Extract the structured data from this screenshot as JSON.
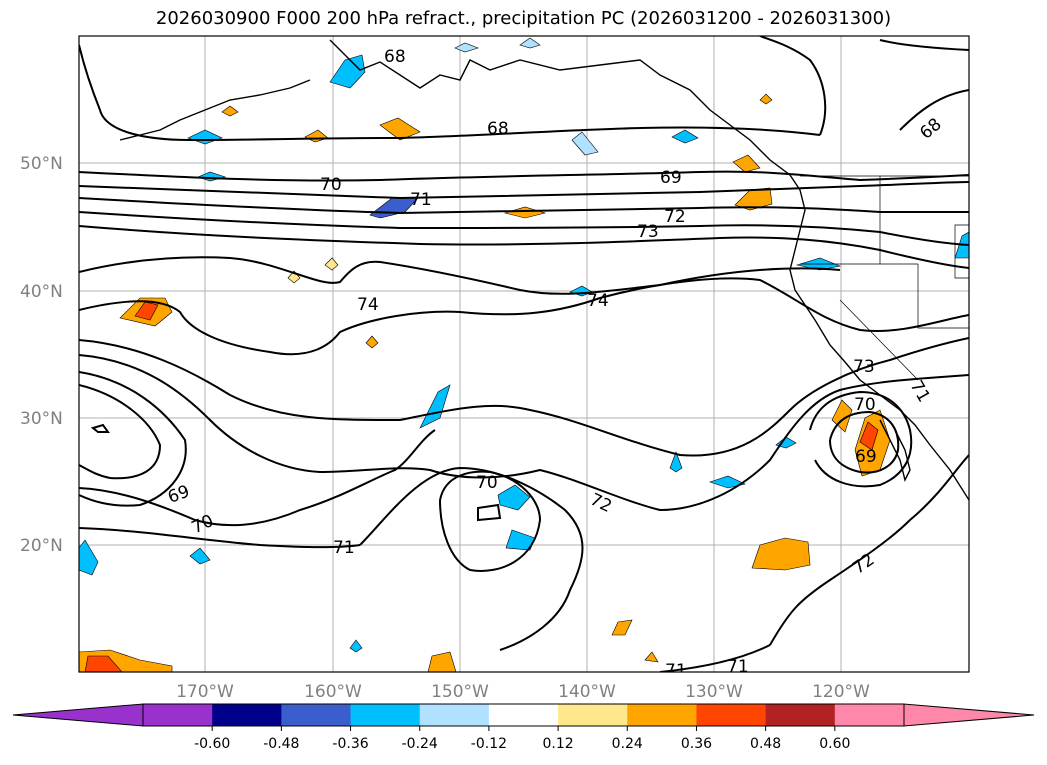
{
  "title": "2026030900 F000 200 hPa refract., precipitation PC (2026031200 - 2026031300)",
  "lat_labels": [
    "50°N",
    "40°N",
    "30°N",
    "20°N"
  ],
  "lon_labels": [
    "170°W",
    "160°W",
    "150°W",
    "140°W",
    "130°W",
    "120°W"
  ],
  "contour_labels": [
    "68",
    "68",
    "68",
    "69",
    "69",
    "69",
    "70",
    "70",
    "70",
    "70",
    "71",
    "71",
    "71",
    "71",
    "71",
    "72",
    "72",
    "72",
    "73",
    "73",
    "74",
    "74"
  ],
  "colorbar": {
    "ticks": [
      "-0.60",
      "-0.48",
      "-0.36",
      "-0.24",
      "-0.12",
      "0.12",
      "0.24",
      "0.36",
      "0.48",
      "0.60"
    ],
    "colors": [
      "#9932cc",
      "#00008b",
      "#3a5fcd",
      "#00bfff",
      "#b0e2ff",
      "#ffffff",
      "#ffe88c",
      "#ffa500",
      "#ff4500",
      "#b22222",
      "#ff88aa"
    ],
    "under_color": "#9932cc",
    "over_color": "#ff88aa"
  }
}
